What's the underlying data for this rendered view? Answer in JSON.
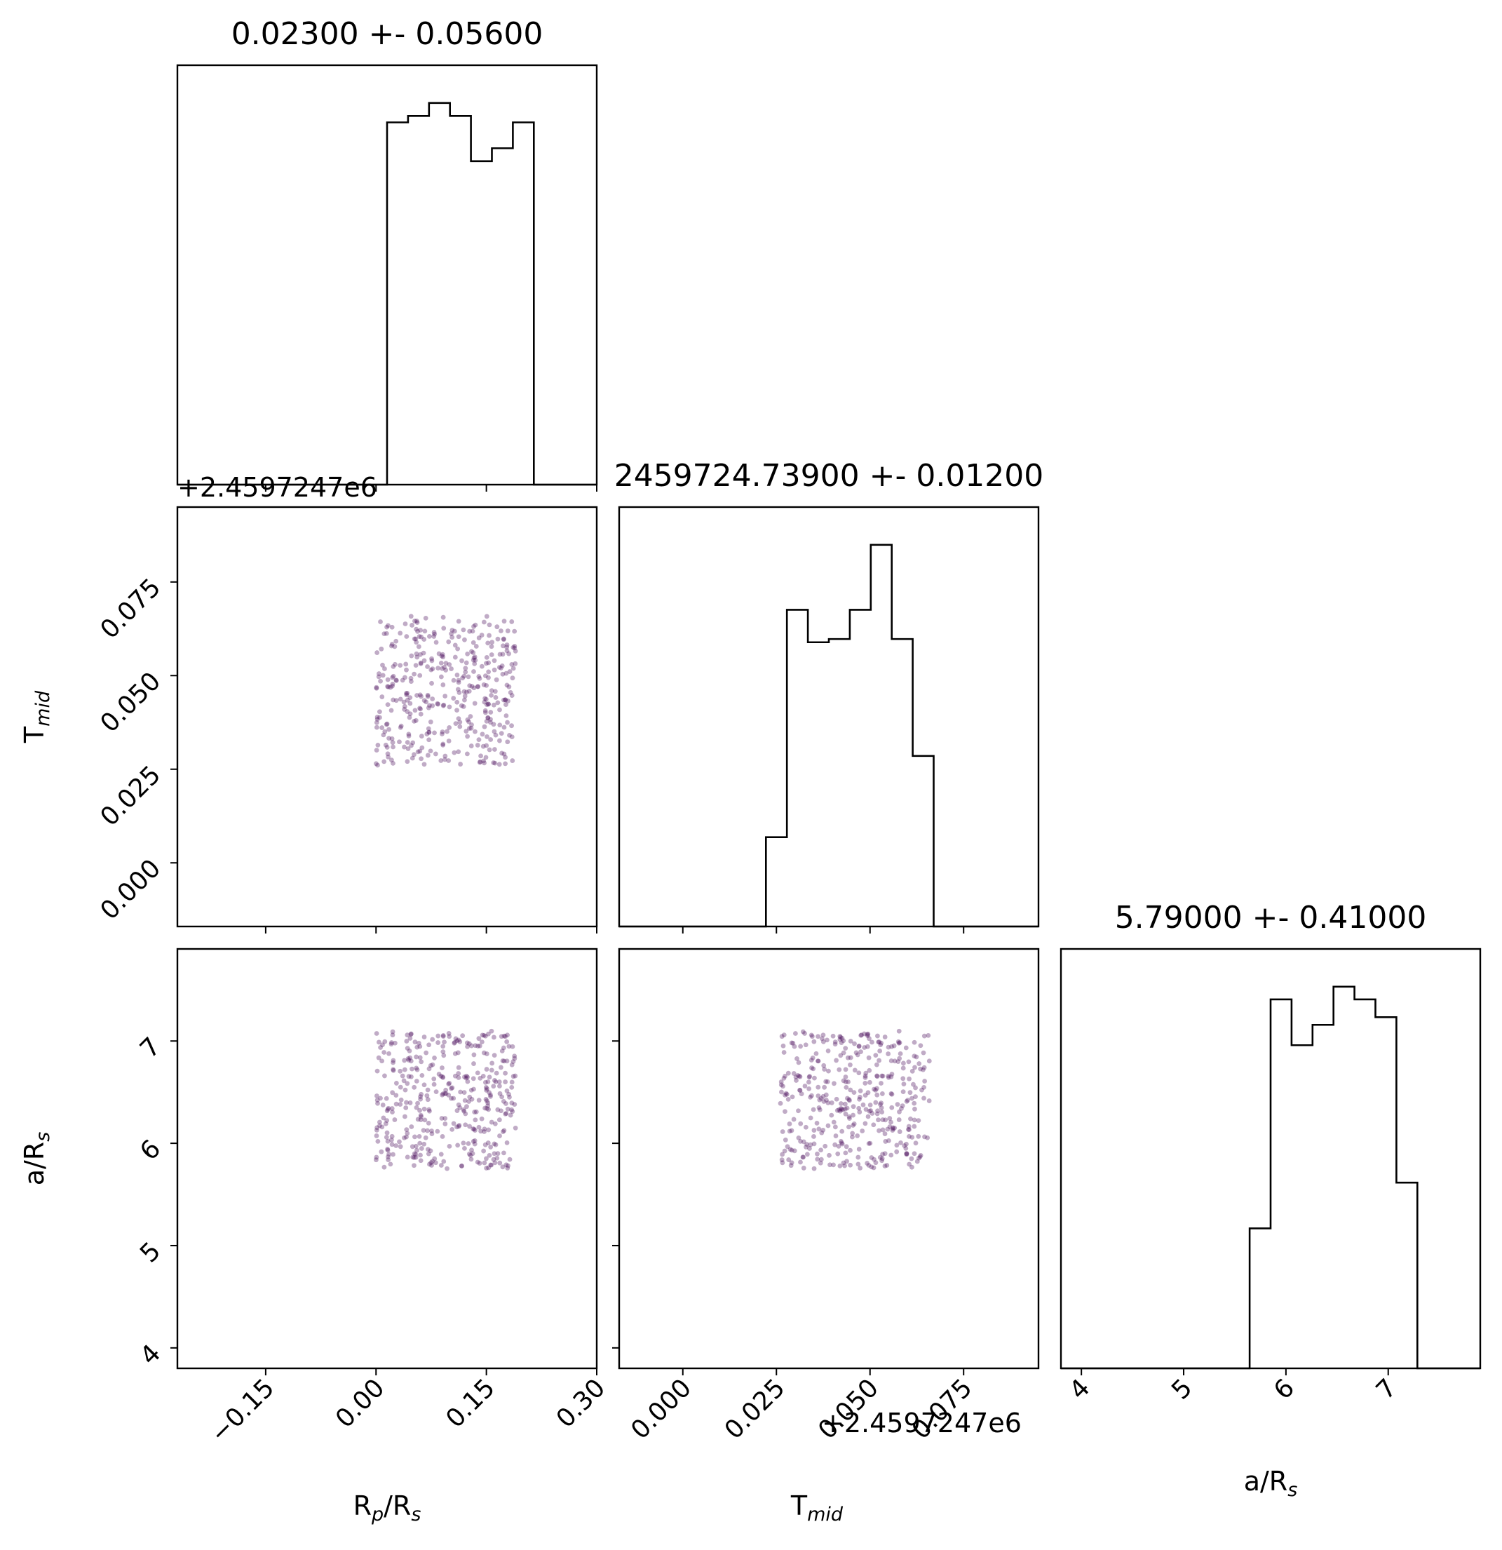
{
  "colors": {
    "histogram": "#000000",
    "scatter": "#4a0f5c",
    "frame": "#000000",
    "background": "#ffffff"
  },
  "chart_data": {
    "type": "scatter",
    "variables": [
      "Rp/Rs",
      "Tmid",
      "a/Rs"
    ],
    "axis_labels": {
      "rp": {
        "base": "R",
        "sub1": "p",
        "mid": "/R",
        "sub2": "s"
      },
      "tmid": {
        "base": "T",
        "sub": "mid"
      },
      "ars": {
        "base": "a/R",
        "sub": "s"
      }
    },
    "titles": {
      "rp": "0.02300 +- 0.05600",
      "tmid": "2459724.73900 +- 0.01200",
      "ars": "5.79000 +- 0.41000"
    },
    "offset_label": "+2.4597247e6",
    "ranges": {
      "rp": [
        -0.27,
        0.3
      ],
      "tmid": [
        -0.017,
        0.095
      ],
      "ars": [
        3.8,
        7.9
      ]
    },
    "ticks": {
      "rp": [
        {
          "v": -0.15,
          "label": "−0.15"
        },
        {
          "v": 0.0,
          "label": "0.00"
        },
        {
          "v": 0.15,
          "label": "0.15"
        },
        {
          "v": 0.3,
          "label": "0.30"
        }
      ],
      "tmid": [
        {
          "v": 0.0,
          "label": "0.000"
        },
        {
          "v": 0.025,
          "label": "0.025"
        },
        {
          "v": 0.05,
          "label": "0.050"
        },
        {
          "v": 0.075,
          "label": "0.075"
        }
      ],
      "ars": [
        {
          "v": 4,
          "label": "4"
        },
        {
          "v": 5,
          "label": "5"
        },
        {
          "v": 6,
          "label": "6"
        },
        {
          "v": 7,
          "label": "7"
        }
      ]
    },
    "histograms": {
      "rp": {
        "edges": [
          -0.27,
          -0.2415,
          -0.213,
          -0.1845,
          -0.156,
          -0.1275,
          -0.099,
          -0.0705,
          -0.042,
          -0.0135,
          0.015,
          0.0435,
          0.072,
          0.1005,
          0.129,
          0.1575,
          0.186,
          0.2145,
          0.243,
          0.2715,
          0.3
        ],
        "counts": [
          0,
          0,
          0,
          0,
          0,
          0,
          0,
          0,
          0,
          0,
          28,
          28.5,
          29.5,
          28.5,
          25,
          26,
          28,
          0,
          0,
          0
        ]
      },
      "tmid": {
        "edges": [
          -0.017,
          -0.0114,
          -0.0058,
          -0.0002,
          0.0054,
          0.011,
          0.0166,
          0.0222,
          0.0278,
          0.0334,
          0.039,
          0.0446,
          0.0502,
          0.0558,
          0.0614,
          0.067,
          0.0726,
          0.0782,
          0.0838,
          0.0894,
          0.095
        ],
        "counts": [
          0,
          0,
          0,
          0,
          0,
          0,
          0,
          5.5,
          19.5,
          17.5,
          17.7,
          19.5,
          23.5,
          17.7,
          10.5,
          0,
          0,
          0,
          0,
          0
        ]
      },
      "ars": {
        "edges": [
          3.8,
          4.005,
          4.21,
          4.415,
          4.62,
          4.825,
          5.03,
          5.235,
          5.44,
          5.645,
          5.85,
          6.055,
          6.26,
          6.465,
          6.67,
          6.875,
          7.08,
          7.285,
          7.49,
          7.695,
          7.9
        ],
        "counts": [
          0,
          0,
          0,
          0,
          0,
          0,
          0,
          0,
          0,
          5.5,
          14.5,
          12.7,
          13.5,
          15.0,
          14.5,
          13.8,
          7.3,
          0,
          0,
          0
        ]
      }
    },
    "scatter_samples": {
      "n": 400,
      "rp_range": [
        0.0,
        0.19
      ],
      "tmid_range": [
        0.026,
        0.066
      ],
      "ars_range": [
        5.75,
        7.1
      ]
    },
    "grid": false
  }
}
